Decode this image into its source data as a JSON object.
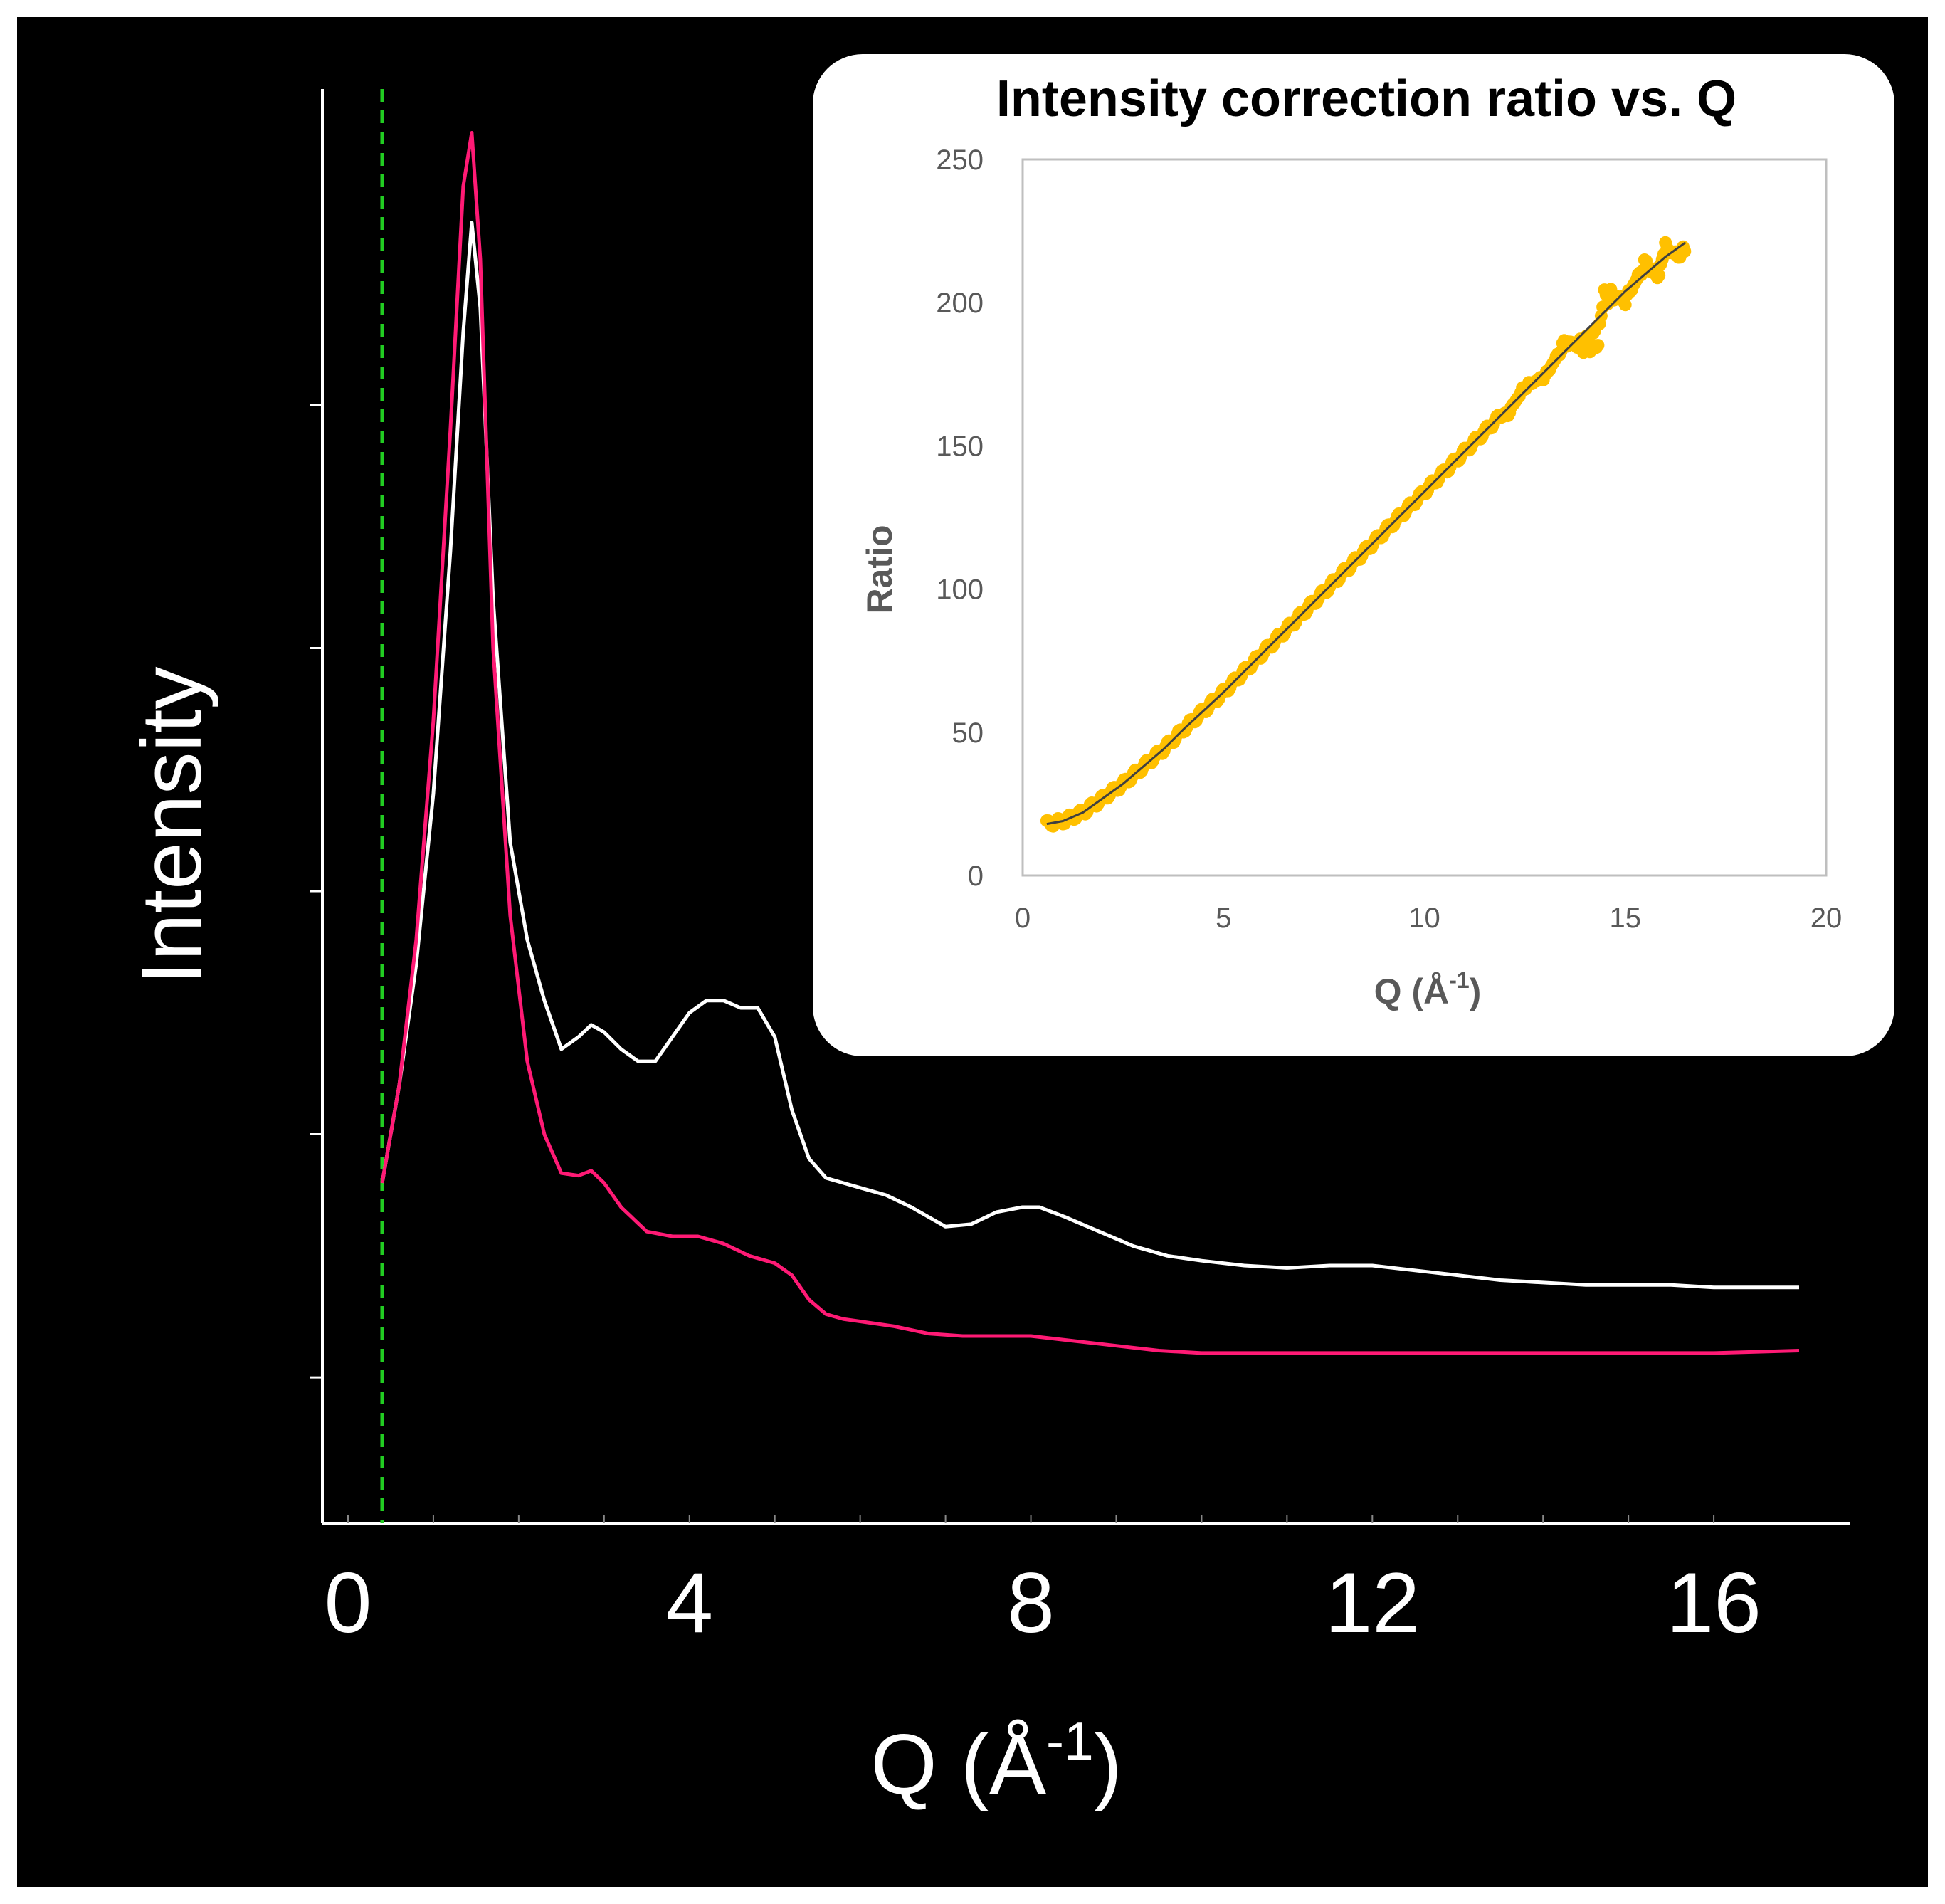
{
  "colors": {
    "background": "#000000",
    "frame": "#ffffff",
    "main_axis": "#ffffff",
    "series_white": "#ffffff",
    "series_magenta": "#ff1a75",
    "cutoff_line": "#22cc22",
    "inset_background": "#ffffff",
    "inset_axis": "#bfbfbf",
    "inset_points": "#ffc000",
    "inset_fit": "#404040"
  },
  "chart_data": [
    {
      "id": "main",
      "type": "line",
      "title": "",
      "xlabel_main": "Q (Å",
      "xlabel_sup": "-1",
      "xlabel_close": ")",
      "ylabel": "Intensity",
      "xlim": [
        -0.3,
        17.6
      ],
      "ylim": [
        0.4,
        6.3
      ],
      "xticks": [
        0,
        4,
        8,
        12,
        16
      ],
      "xtick_labels": [
        "0",
        "4",
        "8",
        "12",
        "16"
      ],
      "ytick_marks": [
        1,
        2,
        3,
        4,
        5
      ],
      "y_tick_labels_shown": false,
      "cutoff_q": 0.4,
      "series": [
        {
          "name": "white",
          "color_key": "series_white",
          "x": [
            0.4,
            0.6,
            0.8,
            1.0,
            1.2,
            1.35,
            1.45,
            1.55,
            1.7,
            1.9,
            2.1,
            2.3,
            2.5,
            2.7,
            2.85,
            3.0,
            3.2,
            3.4,
            3.6,
            3.8,
            4.0,
            4.2,
            4.4,
            4.6,
            4.8,
            5.0,
            5.2,
            5.4,
            5.6,
            5.8,
            6.0,
            6.3,
            6.6,
            7.0,
            7.3,
            7.6,
            7.9,
            8.1,
            8.4,
            8.8,
            9.2,
            9.6,
            10.0,
            10.5,
            11.0,
            11.5,
            12.0,
            12.5,
            13.0,
            13.5,
            14.0,
            14.5,
            15.0,
            15.5,
            16.0,
            16.5,
            17.0
          ],
          "y": [
            1.8,
            2.2,
            2.7,
            3.4,
            4.4,
            5.3,
            5.75,
            5.4,
            4.2,
            3.2,
            2.8,
            2.55,
            2.35,
            2.4,
            2.45,
            2.42,
            2.35,
            2.3,
            2.3,
            2.4,
            2.5,
            2.55,
            2.55,
            2.52,
            2.52,
            2.4,
            2.1,
            1.9,
            1.82,
            1.8,
            1.78,
            1.75,
            1.7,
            1.62,
            1.63,
            1.68,
            1.7,
            1.7,
            1.66,
            1.6,
            1.54,
            1.5,
            1.48,
            1.46,
            1.45,
            1.46,
            1.46,
            1.44,
            1.42,
            1.4,
            1.39,
            1.38,
            1.38,
            1.38,
            1.37,
            1.37,
            1.37
          ]
        },
        {
          "name": "magenta",
          "color_key": "series_magenta",
          "x": [
            0.4,
            0.6,
            0.8,
            1.0,
            1.2,
            1.35,
            1.45,
            1.55,
            1.7,
            1.9,
            2.1,
            2.3,
            2.5,
            2.7,
            2.85,
            3.0,
            3.2,
            3.5,
            3.8,
            4.1,
            4.4,
            4.7,
            5.0,
            5.2,
            5.4,
            5.6,
            5.8,
            6.0,
            6.4,
            6.8,
            7.2,
            7.6,
            8.0,
            8.5,
            9.0,
            9.5,
            10.0,
            10.5,
            11.0,
            12.0,
            13.0,
            14.0,
            15.0,
            16.0,
            17.0
          ],
          "y": [
            1.8,
            2.2,
            2.8,
            3.7,
            4.9,
            5.9,
            6.12,
            5.6,
            4.0,
            2.9,
            2.3,
            2.0,
            1.84,
            1.83,
            1.85,
            1.8,
            1.7,
            1.6,
            1.58,
            1.58,
            1.55,
            1.5,
            1.47,
            1.42,
            1.32,
            1.26,
            1.24,
            1.23,
            1.21,
            1.18,
            1.17,
            1.17,
            1.17,
            1.15,
            1.13,
            1.11,
            1.1,
            1.1,
            1.1,
            1.1,
            1.1,
            1.1,
            1.1,
            1.1,
            1.11
          ]
        }
      ]
    },
    {
      "id": "inset",
      "type": "scatter",
      "title": "Intensity correction ratio vs. Q",
      "xlabel_main": "Q (Å",
      "xlabel_sup": "-1",
      "xlabel_close": ")",
      "ylabel": "Ratio",
      "xlim": [
        0,
        20
      ],
      "ylim": [
        0,
        250
      ],
      "xticks": [
        0,
        5,
        10,
        15,
        20
      ],
      "xtick_labels": [
        "0",
        "5",
        "10",
        "15",
        "20"
      ],
      "yticks": [
        0,
        50,
        100,
        150,
        200,
        250
      ],
      "ytick_labels": [
        "0",
        "50",
        "100",
        "150",
        "200",
        "250"
      ],
      "q_min": 0.6,
      "q_max": 16.5,
      "fit": {
        "x": [
          0.6,
          1.0,
          1.5,
          2.0,
          2.5,
          3.0,
          3.5,
          4.0,
          5.0,
          6.0,
          7.0,
          8.0,
          9.0,
          10.0,
          11.0,
          12.0,
          13.0,
          14.0,
          15.0,
          16.0,
          16.5
        ],
        "y": [
          18,
          19,
          22,
          27,
          32,
          38,
          44,
          51,
          64,
          78,
          92,
          106,
          120,
          134,
          148,
          162,
          176,
          190,
          204,
          216,
          221
        ]
      },
      "deviations": {
        "x": [
          12.0,
          12.5,
          13.0,
          13.5,
          14.0,
          14.3,
          14.5,
          14.7,
          15.0,
          15.5,
          15.8,
          16.0,
          16.3
        ],
        "dy": [
          -4,
          3,
          -3,
          5,
          -8,
          -12,
          10,
          4,
          -5,
          6,
          -7,
          5,
          -4
        ]
      }
    }
  ]
}
